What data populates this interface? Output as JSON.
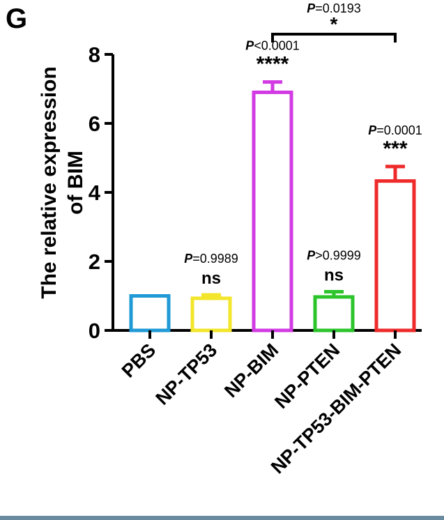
{
  "panel_label": "G",
  "chart_data": {
    "type": "bar",
    "title": "",
    "ylabel_lines": [
      "The relative expression",
      "of BIM"
    ],
    "xlabel": "",
    "categories": [
      "PBS",
      "NP-TP53",
      "NP-BIM",
      "NP-PTEN",
      "NP-TP53-BIM-PTEN"
    ],
    "values": [
      1.0,
      0.93,
      6.9,
      0.97,
      4.33
    ],
    "errors": [
      0.0,
      0.1,
      0.3,
      0.15,
      0.42
    ],
    "colors": [
      "#1f9ad6",
      "#f2e52a",
      "#d23be3",
      "#2bc42b",
      "#ee2a2a"
    ],
    "ylim": [
      0,
      8
    ],
    "yticks": [
      "0",
      "2",
      "4",
      "6",
      "8"
    ],
    "bar_style": "outline",
    "grid": false,
    "annotations": [
      {
        "p_prefix": "",
        "p_value": "",
        "sig": ""
      },
      {
        "p_prefix": "P",
        "p_value": "=0.9989",
        "sig": "ns"
      },
      {
        "p_prefix": "P",
        "p_value": "<0.0001",
        "sig": "****"
      },
      {
        "p_prefix": "P",
        "p_value": ">0.9999",
        "sig": "ns"
      },
      {
        "p_prefix": "P",
        "p_value": "=0.0001",
        "sig": "***"
      }
    ],
    "comparison": {
      "from": 2,
      "to": 4,
      "p_prefix": "P",
      "p_value": "=0.0193",
      "sig": "*"
    }
  }
}
